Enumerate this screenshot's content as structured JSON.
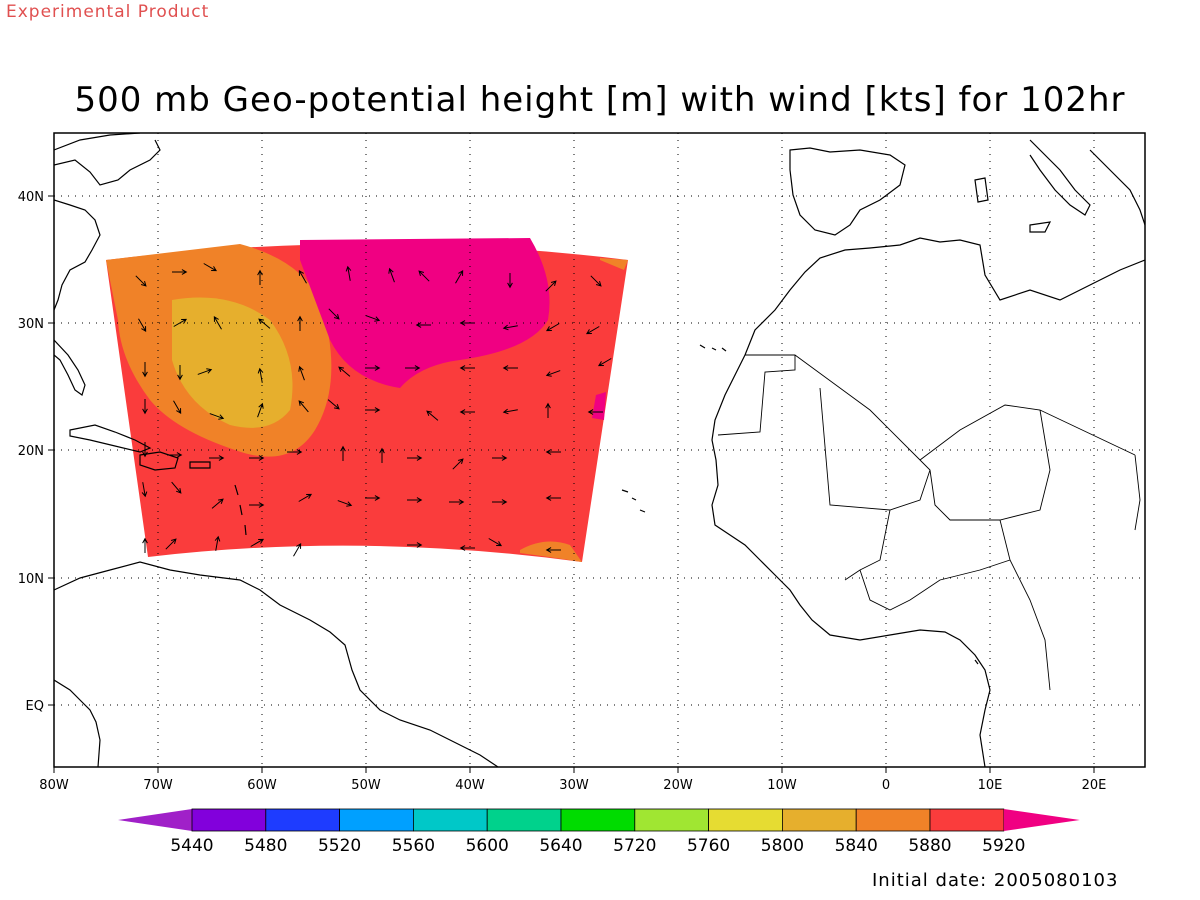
{
  "header": {
    "product_label": "Experimental Product",
    "title": "500 mb Geo-potential height [m] with wind [kts] for 102hr"
  },
  "map": {
    "lon_ticks": [
      "80W",
      "70W",
      "60W",
      "50W",
      "40W",
      "30W",
      "20W",
      "10W",
      "0",
      "10E",
      "20E"
    ],
    "lat_ticks": [
      "40N",
      "30N",
      "20N",
      "10N",
      "EQ"
    ],
    "domain": {
      "lon_min": -80,
      "lon_max": 25,
      "lat_min": -5,
      "lat_max": 45
    }
  },
  "colorbar": {
    "labels": [
      "5440",
      "5480",
      "5520",
      "5560",
      "5600",
      "5640",
      "5720",
      "5760",
      "5800",
      "5840",
      "5880",
      "5920"
    ],
    "colors": [
      "#a020c8",
      "#8200dc",
      "#1e3cff",
      "#00a0ff",
      "#00c8c8",
      "#00d28c",
      "#00dc00",
      "#a0e632",
      "#e6dc32",
      "#e6af2d",
      "#f08228",
      "#fa3c3c",
      "#f00082"
    ]
  },
  "footer": {
    "initial_date": "Initial date: 2005080103"
  },
  "chart_data": {
    "type": "heatmap",
    "title": "500 mb Geo-potential height [m] with wind [kts] for 102hr",
    "units": "m",
    "field_levels": {
      "background": 5880,
      "regions": [
        {
          "level": 5920,
          "description": "high center near 45W 32N"
        },
        {
          "level": 5840,
          "description": "western ridge near 62W 25N"
        },
        {
          "level": 5800,
          "description": "core near 62W 26N"
        }
      ]
    }
  }
}
